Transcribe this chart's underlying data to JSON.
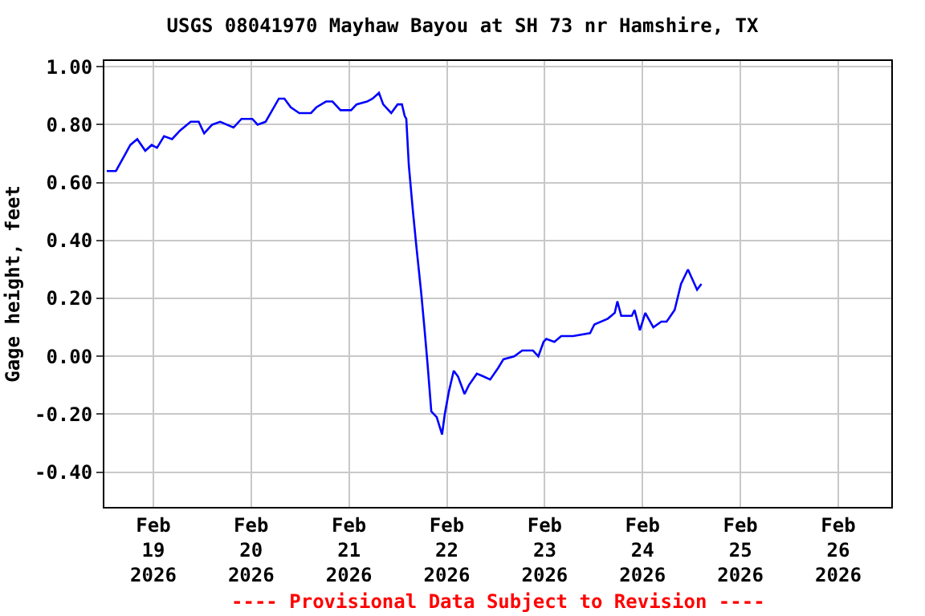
{
  "chart_data": {
    "type": "line",
    "title": "USGS 08041970 Mayhaw Bayou at SH 73 nr Hamshire, TX",
    "ylabel": "Gage height, feet",
    "annotations": [
      "---- Provisional Data Subject to Revision ----"
    ],
    "x": [
      "2026-02-18T12:35",
      "2026-02-18T14:50",
      "2026-02-18T16:48",
      "2026-02-18T18:22",
      "2026-02-18T20:04",
      "2026-02-18T22:02",
      "2026-02-18T23:36",
      "2026-02-19T00:54",
      "2026-02-19T02:38",
      "2026-02-19T04:36",
      "2026-02-19T06:34",
      "2026-02-19T09:10",
      "2026-02-19T11:08",
      "2026-02-19T12:28",
      "2026-02-19T14:26",
      "2026-02-19T16:24",
      "2026-02-19T19:40",
      "2026-02-19T21:38",
      "2026-02-20T00:17",
      "2026-02-20T01:34",
      "2026-02-20T03:32",
      "2026-02-20T06:48",
      "2026-02-20T08:09",
      "2026-02-20T09:43",
      "2026-02-20T11:48",
      "2026-02-20T14:40",
      "2026-02-20T16:00",
      "2026-02-20T18:22",
      "2026-02-20T19:57",
      "2026-02-20T21:55",
      "2026-02-21T00:31",
      "2026-02-21T01:51",
      "2026-02-21T04:27",
      "2026-02-21T05:47",
      "2026-02-21T07:21",
      "2026-02-21T08:23",
      "2026-02-21T10:21",
      "2026-02-21T11:55",
      "2026-02-21T12:59",
      "2026-02-21T13:39",
      "2026-02-21T14:03",
      "2026-02-21T14:40",
      "2026-02-21T15:37",
      "2026-02-21T16:31",
      "2026-02-21T17:42",
      "2026-02-21T18:29",
      "2026-02-21T19:17",
      "2026-02-21T20:11",
      "2026-02-21T21:31",
      "2026-02-21T22:49",
      "2026-02-21T23:29",
      "2026-02-22T00:31",
      "2026-02-22T01:41",
      "2026-02-22T02:45",
      "2026-02-22T04:20",
      "2026-02-22T05:23",
      "2026-02-22T07:21",
      "2026-02-22T09:03",
      "2026-02-22T10:37",
      "2026-02-22T12:35",
      "2026-02-22T13:53",
      "2026-02-22T16:31",
      "2026-02-22T18:29",
      "2026-02-22T21:08",
      "2026-02-22T22:26",
      "2026-02-22T23:43",
      "2026-02-23T00:23",
      "2026-02-23T02:22",
      "2026-02-23T04:03",
      "2026-02-23T06:58",
      "2026-02-23T11:08",
      "2026-02-23T12:11",
      "2026-02-23T15:28",
      "2026-02-23T17:11",
      "2026-02-23T17:49",
      "2026-02-23T18:46",
      "2026-02-23T21:22",
      "2026-02-23T22:02",
      "2026-02-23T23:20",
      "2026-02-24T00:40",
      "2026-02-24T02:38",
      "2026-02-24T04:36",
      "2026-02-24T05:54",
      "2026-02-24T07:52",
      "2026-02-24T09:26",
      "2026-02-24T11:08",
      "2026-02-24T13:22",
      "2026-02-24T14:26"
    ],
    "series": [
      {
        "color": "#0000ff",
        "values": [
          0.64,
          0.64,
          0.69,
          0.73,
          0.75,
          0.71,
          0.73,
          0.72,
          0.76,
          0.75,
          0.78,
          0.81,
          0.81,
          0.77,
          0.8,
          0.81,
          0.79,
          0.82,
          0.82,
          0.8,
          0.81,
          0.89,
          0.89,
          0.86,
          0.84,
          0.84,
          0.86,
          0.88,
          0.88,
          0.85,
          0.85,
          0.87,
          0.88,
          0.89,
          0.91,
          0.87,
          0.84,
          0.87,
          0.87,
          0.83,
          0.82,
          0.66,
          0.51,
          0.38,
          0.22,
          0.1,
          -0.03,
          -0.19,
          -0.21,
          -0.27,
          -0.2,
          -0.12,
          -0.05,
          -0.07,
          -0.13,
          -0.1,
          -0.06,
          -0.07,
          -0.08,
          -0.04,
          -0.01,
          0.0,
          0.02,
          0.02,
          0.0,
          0.05,
          0.06,
          0.05,
          0.07,
          0.07,
          0.08,
          0.11,
          0.13,
          0.15,
          0.19,
          0.14,
          0.14,
          0.16,
          0.09,
          0.15,
          0.1,
          0.12,
          0.12,
          0.16,
          0.25,
          0.3,
          0.23,
          0.25
        ]
      }
    ],
    "xlim": [
      "2026-02-18T12:00",
      "2026-02-26T13:00"
    ],
    "xticks": [
      {
        "value": "2026-02-19",
        "label": "Feb\n19\n2026"
      },
      {
        "value": "2026-02-20",
        "label": "Feb\n20\n2026"
      },
      {
        "value": "2026-02-21",
        "label": "Feb\n21\n2026"
      },
      {
        "value": "2026-02-22",
        "label": "Feb\n22\n2026"
      },
      {
        "value": "2026-02-23",
        "label": "Feb\n23\n2026"
      },
      {
        "value": "2026-02-24",
        "label": "Feb\n24\n2026"
      },
      {
        "value": "2026-02-25",
        "label": "Feb\n25\n2026"
      },
      {
        "value": "2026-02-26",
        "label": "Feb\n26\n2026"
      }
    ],
    "ylim": [
      -0.52,
      1.02
    ],
    "yticks": [
      {
        "value": -0.4,
        "label": "-0.40"
      },
      {
        "value": -0.2,
        "label": "-0.20"
      },
      {
        "value": 0,
        "label": "0.00"
      },
      {
        "value": 0.2,
        "label": "0.20"
      },
      {
        "value": 0.4,
        "label": "0.40"
      },
      {
        "value": 0.6,
        "label": "0.60"
      },
      {
        "value": 0.8,
        "label": "0.80"
      },
      {
        "value": 1.0,
        "label": "1.00"
      }
    ],
    "grid": true
  }
}
